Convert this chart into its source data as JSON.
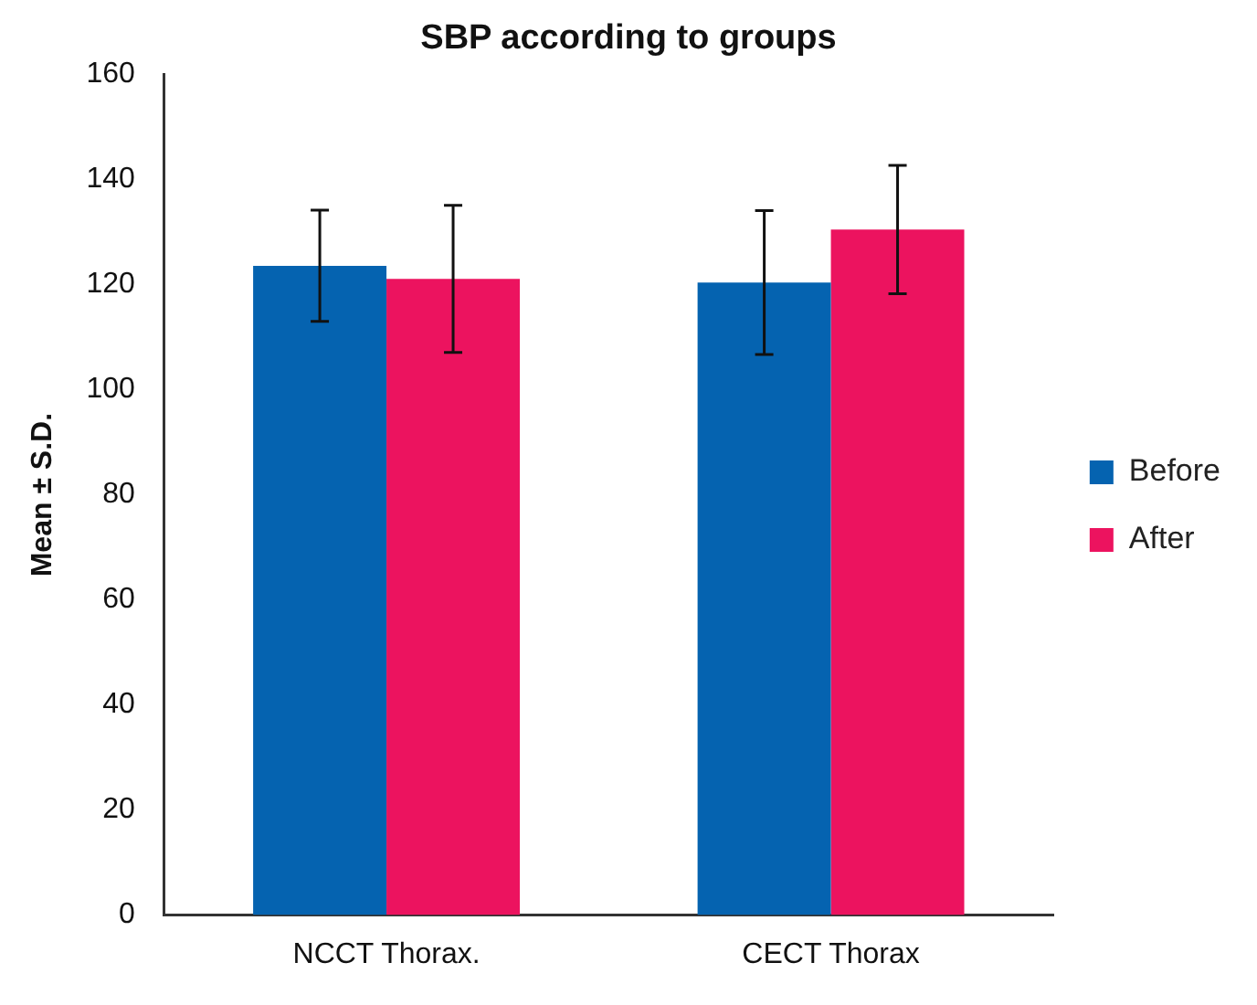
{
  "chart_data": {
    "type": "bar",
    "title": "SBP according to groups",
    "ylabel": "Mean ± S.D.",
    "categories": [
      "NCCT Thorax.",
      "CECT Thorax"
    ],
    "series": [
      {
        "name": "Before",
        "color": "#0563b0",
        "values": [
          123.6,
          120.4
        ],
        "errors": [
          10.6,
          13.7
        ]
      },
      {
        "name": "After",
        "color": "#ec135f",
        "values": [
          121.1,
          130.5
        ],
        "errors": [
          14,
          12.2
        ]
      }
    ],
    "ylim": [
      0,
      160
    ],
    "yticks": [
      0,
      20,
      40,
      60,
      80,
      100,
      120,
      140,
      160
    ],
    "grid": false,
    "legend": "right"
  }
}
